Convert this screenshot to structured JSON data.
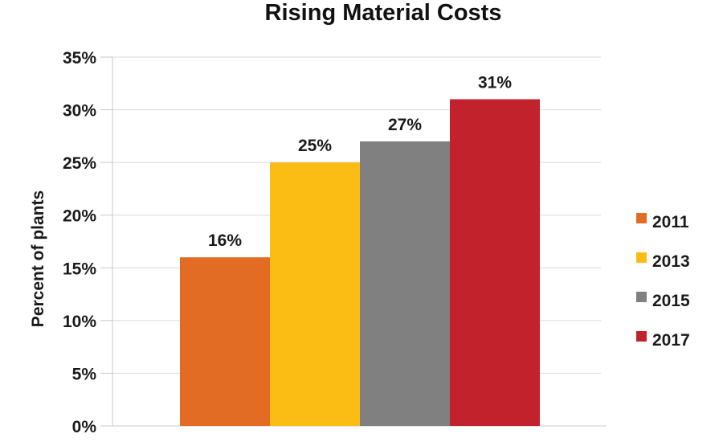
{
  "chart_data": {
    "type": "bar",
    "title": "Rising Material Costs",
    "ylabel": "Percent of plants",
    "xlabel": "",
    "ylim": [
      0,
      35
    ],
    "yticks": [
      "0%",
      "5%",
      "10%",
      "15%",
      "20%",
      "25%",
      "30%",
      "35%"
    ],
    "grid": true,
    "legend_position": "right",
    "series": [
      {
        "name": "2011",
        "value": 16,
        "label": "16%",
        "color": "#e36c25"
      },
      {
        "name": "2013",
        "value": 25,
        "label": "25%",
        "color": "#fbbd14"
      },
      {
        "name": "2015",
        "value": 27,
        "label": "27%",
        "color": "#808080"
      },
      {
        "name": "2017",
        "value": 31,
        "label": "31%",
        "color": "#c1222c"
      }
    ]
  }
}
